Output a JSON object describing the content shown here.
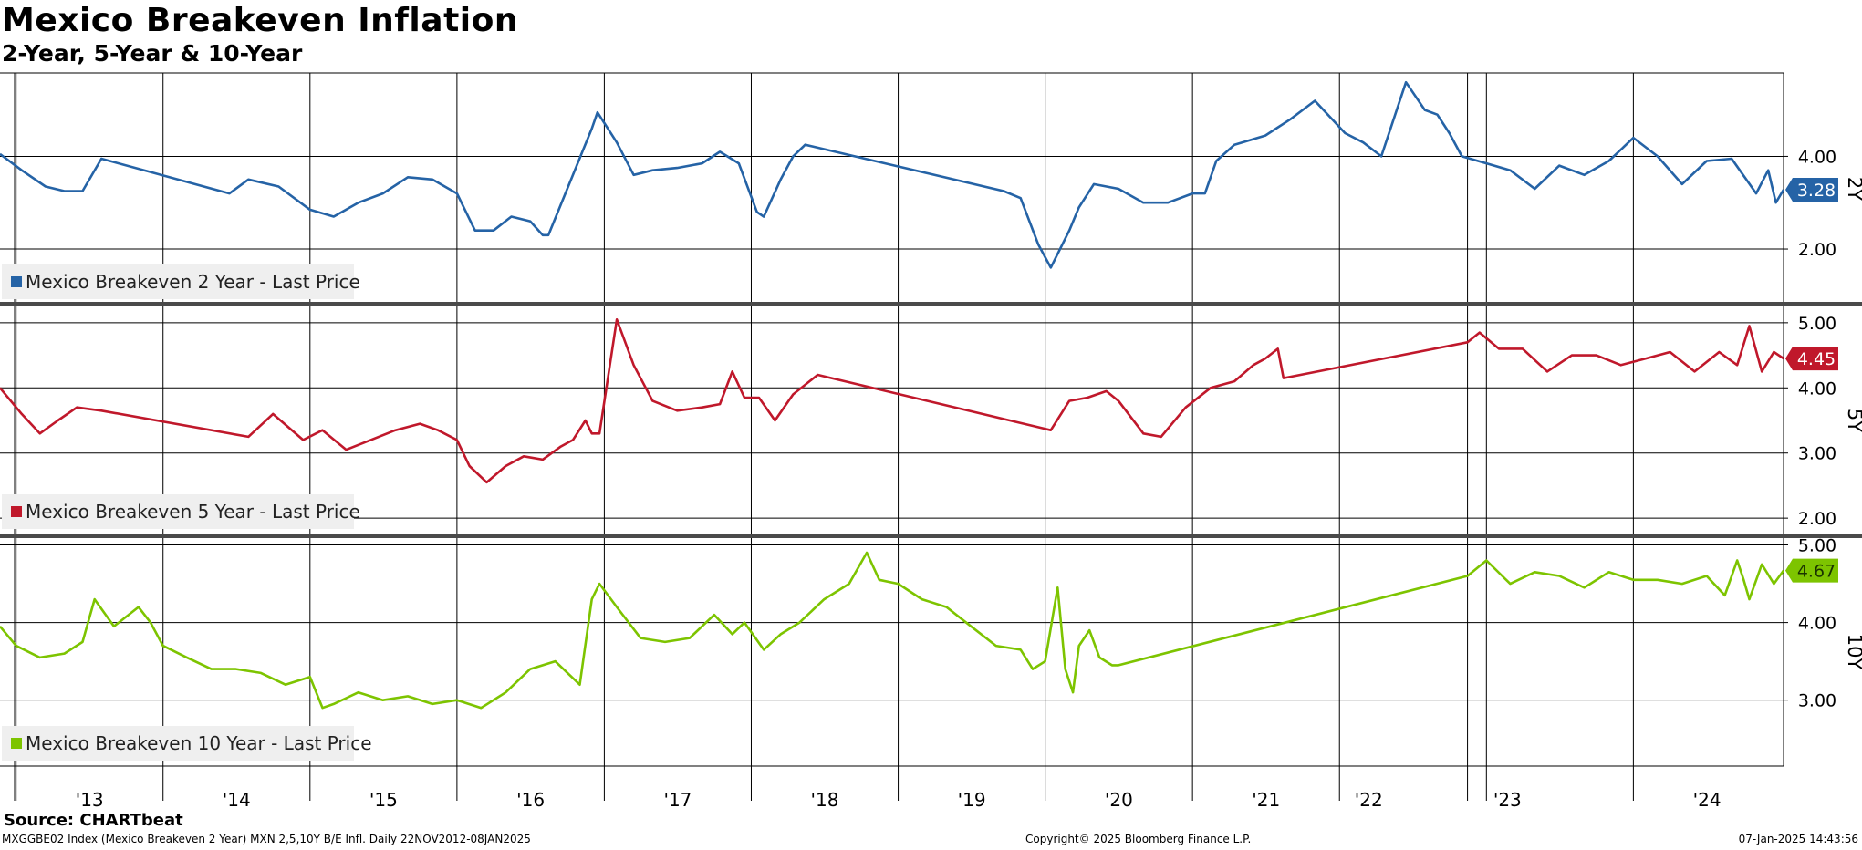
{
  "title": "Mexico Breakeven Inflation",
  "subtitle": "2-Year, 5-Year & 10-Year",
  "footer": {
    "source": "Source: CHARTbeat",
    "left": "MXGGBE02 Index (Mexico Breakeven 2 Year) MXN 2,5,10Y B/E Infl.  Daily 22NOV2012-08JAN2025",
    "center": "Copyright© 2025 Bloomberg Finance L.P.",
    "right": "07-Jan-2025 14:43:56"
  },
  "chart_data": {
    "type": "line",
    "x_range": [
      "2012-11-22",
      "2025-01-08"
    ],
    "x_ticks": [
      "'13",
      "'14",
      "'15",
      "'16",
      "'17",
      "'18",
      "'19",
      "'20",
      "'21",
      "'22",
      "'23",
      "'24"
    ],
    "grid": true,
    "legend_position": "bottom-left",
    "panels": [
      {
        "axis_label": "2Y",
        "color": "#2563A6",
        "legend": "Mexico Breakeven 2 Year - Last Price",
        "last_value": "3.28",
        "ylim": [
          0.8,
          5.8
        ],
        "yticks": [
          "2.00",
          "4.00"
        ],
        "series": [
          {
            "name": "Mexico Breakeven 2 Year - Last Price",
            "x": [
              "2012-11-22",
              "2013-01-15",
              "2013-03-15",
              "2013-05-01",
              "2013-06-15",
              "2013-08-01",
              "2014-06-15",
              "2014-08-01",
              "2014-10-15",
              "2015-01-01",
              "2015-03-01",
              "2015-05-01",
              "2015-07-01",
              "2015-09-01",
              "2015-11-01",
              "2016-01-01",
              "2016-02-15",
              "2016-04-01",
              "2016-05-15",
              "2016-07-01",
              "2016-08-01",
              "2016-08-15",
              "2016-12-01",
              "2016-12-15",
              "2017-02-01",
              "2017-03-15",
              "2017-05-01",
              "2017-07-01",
              "2017-09-01",
              "2017-10-15",
              "2017-12-01",
              "2018-01-15",
              "2018-02-01",
              "2018-03-15",
              "2018-04-15",
              "2018-05-15",
              "2019-09-20",
              "2019-11-01",
              "2019-12-15",
              "2020-01-15",
              "2020-03-01",
              "2020-03-25",
              "2020-05-01",
              "2020-07-01",
              "2020-09-01",
              "2020-11-01",
              "2021-01-01",
              "2021-02-01",
              "2021-03-01",
              "2021-04-15",
              "2021-07-01",
              "2021-09-01",
              "2021-11-01",
              "2022-01-15",
              "2022-03-01",
              "2022-04-15",
              "2022-06-15",
              "2022-08-01",
              "2022-09-01",
              "2022-10-01",
              "2022-11-01",
              "2023-01-01",
              "2023-03-01",
              "2023-05-01",
              "2023-07-01",
              "2023-09-01",
              "2023-11-01",
              "2024-01-01",
              "2024-03-01",
              "2024-05-01",
              "2024-07-01",
              "2024-09-01",
              "2024-11-01",
              "2024-12-01",
              "2024-12-20",
              "2025-01-08"
            ],
            "y": [
              4.05,
              3.7,
              3.35,
              3.25,
              3.25,
              3.95,
              3.2,
              3.5,
              3.35,
              2.85,
              2.7,
              3.0,
              3.2,
              3.55,
              3.5,
              3.2,
              2.4,
              2.4,
              2.7,
              2.6,
              2.3,
              2.3,
              4.6,
              4.95,
              4.3,
              3.6,
              3.7,
              3.75,
              3.85,
              4.1,
              3.85,
              2.8,
              2.7,
              3.5,
              4.0,
              4.25,
              3.25,
              3.1,
              2.1,
              1.6,
              2.4,
              2.9,
              3.4,
              3.3,
              3.0,
              3.0,
              3.2,
              3.2,
              3.9,
              4.25,
              4.45,
              4.8,
              5.2,
              4.5,
              4.3,
              4.0,
              5.6,
              5.0,
              4.9,
              4.5,
              4.0,
              3.85,
              3.7,
              3.3,
              3.8,
              3.6,
              3.9,
              4.4,
              4.0,
              3.4,
              3.9,
              3.95,
              3.2,
              3.7,
              3.0,
              3.28
            ]
          }
        ]
      },
      {
        "axis_label": "5Y",
        "color": "#C0182B",
        "legend": "Mexico Breakeven 5 Year - Last Price",
        "last_value": "4.45",
        "ylim": [
          1.75,
          5.25
        ],
        "yticks": [
          "2.00",
          "3.00",
          "4.00",
          "5.00"
        ],
        "series": [
          {
            "name": "Mexico Breakeven 5 Year - Last Price",
            "x": [
              "2012-11-22",
              "2013-01-15",
              "2013-03-01",
              "2013-04-15",
              "2013-06-01",
              "2013-08-01",
              "2014-08-01",
              "2014-10-01",
              "2014-12-15",
              "2015-02-01",
              "2015-04-01",
              "2015-06-01",
              "2015-08-01",
              "2015-10-01",
              "2015-11-15",
              "2016-01-01",
              "2016-02-01",
              "2016-03-15",
              "2016-05-01",
              "2016-06-15",
              "2016-08-01",
              "2016-09-15",
              "2016-10-15",
              "2016-11-15",
              "2016-12-01",
              "2016-12-20",
              "2017-02-01",
              "2017-03-15",
              "2017-05-01",
              "2017-07-01",
              "2017-09-01",
              "2017-10-15",
              "2017-11-15",
              "2017-12-15",
              "2018-01-20",
              "2018-03-01",
              "2018-04-15",
              "2018-06-15",
              "2020-01-15",
              "2020-03-01",
              "2020-04-15",
              "2020-06-01",
              "2020-07-01",
              "2020-09-01",
              "2020-10-15",
              "2020-12-15",
              "2021-02-15",
              "2021-04-15",
              "2021-06-01",
              "2021-07-01",
              "2021-08-01",
              "2021-08-15",
              "2022-11-15",
              "2022-12-15",
              "2023-02-01",
              "2023-04-01",
              "2023-06-01",
              "2023-08-01",
              "2023-10-01",
              "2023-12-01",
              "2024-02-01",
              "2024-04-01",
              "2024-06-01",
              "2024-08-01",
              "2024-09-15",
              "2024-10-15",
              "2024-11-15",
              "2024-12-15",
              "2025-01-08"
            ],
            "y": [
              4.0,
              3.6,
              3.3,
              3.5,
              3.7,
              3.65,
              3.25,
              3.6,
              3.2,
              3.35,
              3.05,
              3.2,
              3.35,
              3.45,
              3.35,
              3.2,
              2.8,
              2.55,
              2.8,
              2.95,
              2.9,
              3.1,
              3.2,
              3.5,
              3.3,
              3.3,
              5.05,
              4.35,
              3.8,
              3.65,
              3.7,
              3.75,
              4.25,
              3.85,
              3.85,
              3.5,
              3.9,
              4.2,
              3.35,
              3.8,
              3.85,
              3.95,
              3.8,
              3.3,
              3.25,
              3.7,
              4.0,
              4.1,
              4.35,
              4.45,
              4.6,
              4.15,
              4.7,
              4.85,
              4.6,
              4.6,
              4.25,
              4.5,
              4.5,
              4.35,
              4.45,
              4.55,
              4.25,
              4.55,
              4.35,
              4.95,
              4.25,
              4.55,
              4.45
            ]
          }
        ]
      },
      {
        "axis_label": "10Y",
        "color": "#7DC400",
        "legend": "Mexico Breakeven 10 Year - Last Price",
        "last_value": "4.67",
        "ylim": [
          2.15,
          5.1
        ],
        "yticks": [
          "3.00",
          "4.00",
          "5.00"
        ],
        "series": [
          {
            "name": "Mexico Breakeven 10 Year - Last Price",
            "x": [
              "2012-11-22",
              "2013-01-01",
              "2013-03-01",
              "2013-05-01",
              "2013-06-15",
              "2013-07-15",
              "2013-09-01",
              "2013-11-01",
              "2013-12-01",
              "2014-01-01",
              "2014-03-01",
              "2014-05-01",
              "2014-07-01",
              "2014-09-01",
              "2014-11-01",
              "2015-01-01",
              "2015-02-01",
              "2015-03-01",
              "2015-05-01",
              "2015-07-01",
              "2015-09-01",
              "2015-11-01",
              "2016-01-01",
              "2016-03-01",
              "2016-05-01",
              "2016-07-01",
              "2016-09-01",
              "2016-11-01",
              "2016-12-01",
              "2016-12-20",
              "2017-02-01",
              "2017-04-01",
              "2017-06-01",
              "2017-08-01",
              "2017-10-01",
              "2017-11-15",
              "2017-12-15",
              "2018-02-01",
              "2018-03-15",
              "2018-05-01",
              "2018-07-01",
              "2018-09-01",
              "2018-10-15",
              "2018-11-15",
              "2019-01-01",
              "2019-03-01",
              "2019-05-01",
              "2019-07-01",
              "2019-09-01",
              "2019-11-01",
              "2019-12-01",
              "2020-01-01",
              "2020-02-01",
              "2020-02-20",
              "2020-03-10",
              "2020-03-25",
              "2020-04-20",
              "2020-05-15",
              "2020-06-15",
              "2020-07-01",
              "2022-11-15",
              "2023-01-01",
              "2023-03-01",
              "2023-05-01",
              "2023-07-01",
              "2023-09-01",
              "2023-11-01",
              "2024-01-01",
              "2024-03-01",
              "2024-05-01",
              "2024-07-01",
              "2024-08-15",
              "2024-09-15",
              "2024-10-01",
              "2024-10-15",
              "2024-11-15",
              "2024-12-15",
              "2025-01-08"
            ],
            "y": [
              3.95,
              3.7,
              3.55,
              3.6,
              3.75,
              4.3,
              3.95,
              4.2,
              4.0,
              3.7,
              3.55,
              3.4,
              3.4,
              3.35,
              3.2,
              3.3,
              2.9,
              2.95,
              3.1,
              3.0,
              3.05,
              2.95,
              3.0,
              2.9,
              3.1,
              3.4,
              3.5,
              3.2,
              4.3,
              4.5,
              4.2,
              3.8,
              3.75,
              3.8,
              4.1,
              3.85,
              4.0,
              3.65,
              3.85,
              4.0,
              4.3,
              4.5,
              4.9,
              4.55,
              4.5,
              4.3,
              4.2,
              3.95,
              3.7,
              3.65,
              3.4,
              3.5,
              4.45,
              3.4,
              3.1,
              3.7,
              3.9,
              3.55,
              3.45,
              3.45,
              4.6,
              4.8,
              4.5,
              4.65,
              4.6,
              4.45,
              4.65,
              4.55,
              4.55,
              4.5,
              4.6,
              4.35,
              4.8,
              4.55,
              4.3,
              4.75,
              4.5,
              4.67
            ]
          }
        ]
      }
    ]
  }
}
